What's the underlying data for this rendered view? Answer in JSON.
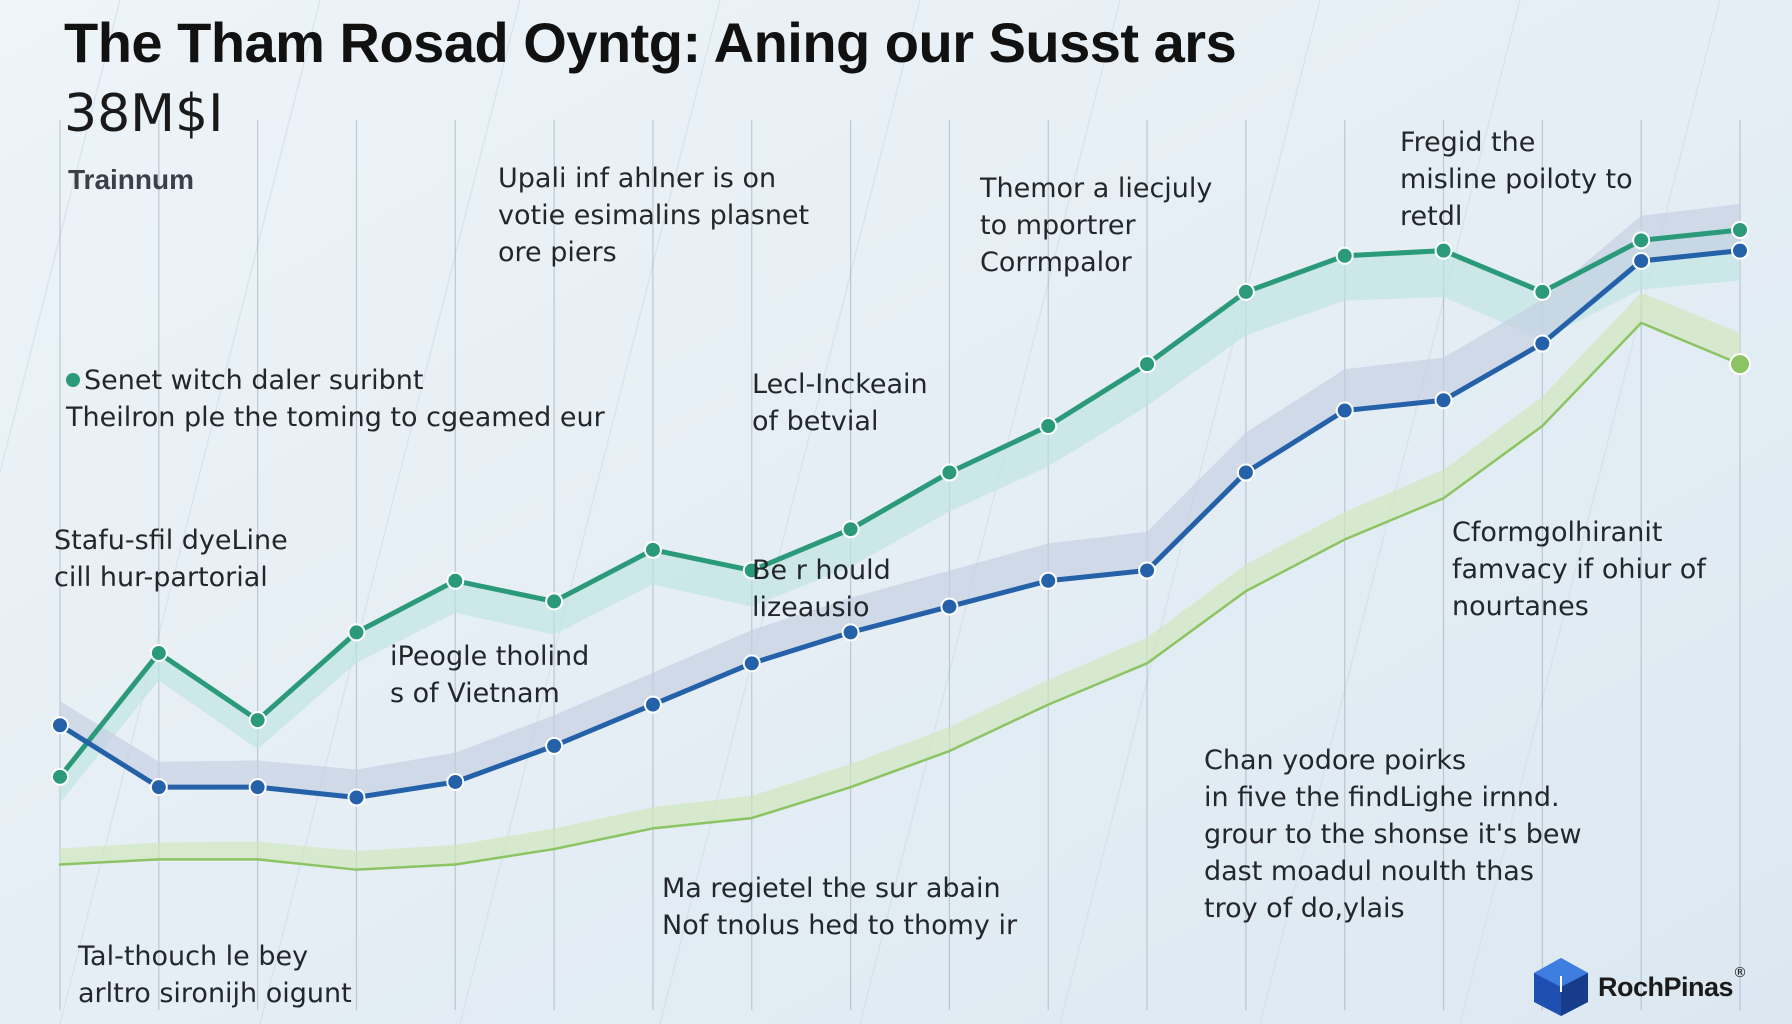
{
  "title": "The Tham Rosad Oyntg: Aning our Susst ars",
  "subtitle": "38M$I",
  "chart_data": {
    "type": "line",
    "ylabel": "Trainnum",
    "x": [
      0,
      1,
      2,
      3,
      4,
      5,
      6,
      7,
      8,
      9,
      10,
      11,
      12,
      13,
      14,
      15,
      16,
      17
    ],
    "series": [
      {
        "values": [
          20,
          44,
          31,
          48,
          58,
          54,
          64,
          60,
          68,
          79,
          88,
          100,
          114,
          121,
          122,
          114,
          124,
          126
        ],
        "color": "#2a9a7a"
      },
      {
        "values": [
          30,
          18,
          18,
          16,
          19,
          26,
          34,
          42,
          48,
          53,
          58,
          60,
          79,
          91,
          93,
          104,
          120,
          122
        ],
        "color": "#2461a8"
      },
      {
        "values": [
          3,
          4,
          4,
          2,
          3,
          6,
          10,
          12,
          18,
          25,
          34,
          42,
          56,
          66,
          74,
          88,
          108,
          100
        ],
        "color": "#8cc464"
      }
    ]
  },
  "annotations": [
    {
      "lines": [
        "Upali inf ahlner is on",
        "votie esimalins plasnet",
        "ore piers"
      ]
    },
    {
      "lines": [
        "Themor a liecjuly",
        "to mportrer",
        "Corrmpalor"
      ]
    },
    {
      "lines": [
        "Fregid the",
        "misline poiloty to",
        "retdl"
      ]
    },
    {
      "lines": [
        "Senet witch daler suribnt",
        "Theilron ple the toming to cgeamed eur"
      ]
    },
    {
      "lines": [
        "Lecl-Inckeain",
        "of betvial"
      ]
    },
    {
      "lines": [
        "Stafu-sfil dyeLine",
        "cill hur-partorial"
      ]
    },
    {
      "lines": [
        "Be r hould",
        "lizeausio"
      ]
    },
    {
      "lines": [
        "Cformgolhiranit",
        "famvacy if ohiur of",
        "nourtanes"
      ]
    },
    {
      "lines": [
        "iPeogle tholind",
        "s of Vietnam"
      ]
    },
    {
      "lines": [
        "Chan yodore poirks",
        "in five the findLighe irnnd.",
        "grour to the shonse it's bew",
        "dast moadul nouIth thas",
        "troy of do,ylais"
      ]
    },
    {
      "lines": [
        "Ma regietel the sur abain",
        "Nof tnolus hed to thomy ir"
      ]
    },
    {
      "lines": [
        "Tal-thouch le bey",
        "arltro sironijh oigunt"
      ]
    }
  ],
  "logo": {
    "name": "RochPinas",
    "mark": "®"
  },
  "colors": {
    "background": "#e4eef5",
    "teal": "#2a9a7a",
    "blue": "#2461a8",
    "green": "#8cc464"
  }
}
